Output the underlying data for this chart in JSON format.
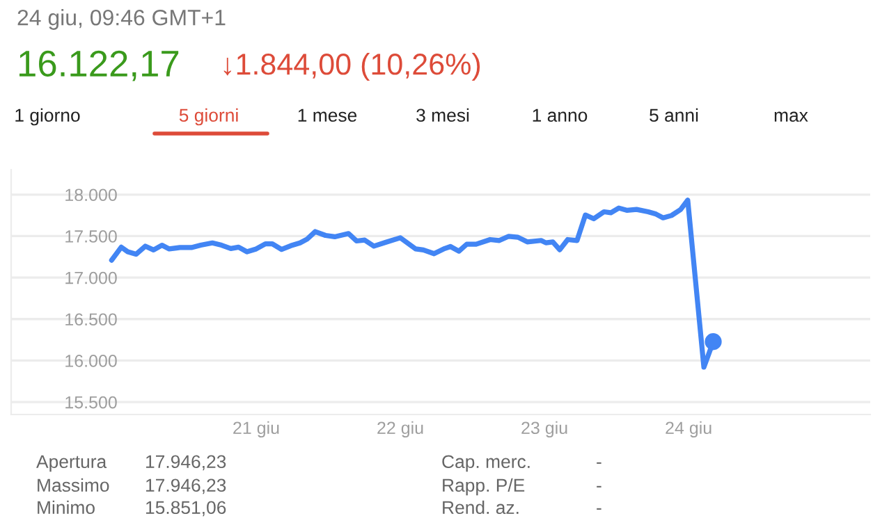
{
  "chart_data": {
    "type": "line",
    "title": "24 giu, 09:46 GMT+1",
    "subtitle": "16.122,17",
    "annotations": [
      "↓1.844,00 (10,26%)",
      "1 giorno",
      "5 giorni",
      "1 mese",
      "3 mesi",
      "1 anno",
      "5 anni",
      "max",
      "Apertura",
      "17.946,23",
      "Massimo",
      "17.946,23",
      "Minimo",
      "15.851,06",
      "Cap. merc.",
      "-",
      "Rapp. P/E",
      "-",
      "Rend. az.",
      "-"
    ],
    "series": [
      {
        "color": "#4285f4",
        "marker": "none",
        "x": [
          19.997,
          20.064,
          20.109,
          20.167,
          20.231,
          20.288,
          20.346,
          20.397,
          20.471,
          20.551,
          20.615,
          20.696,
          20.76,
          20.824,
          20.878,
          20.936,
          21.0,
          21.064,
          21.112,
          21.176,
          21.24,
          21.304,
          21.353,
          21.41,
          21.481,
          21.545,
          21.641,
          21.696,
          21.753,
          21.817,
          21.897,
          22.0,
          22.106,
          22.16,
          22.234,
          22.308,
          22.348,
          22.406,
          22.461,
          22.526,
          22.623,
          22.687,
          22.752,
          22.816,
          22.881,
          22.977,
          23.01,
          23.058,
          23.106,
          23.161,
          23.226,
          23.284,
          23.342,
          23.413,
          23.461,
          23.516,
          23.574,
          23.639,
          23.719,
          23.774,
          23.823,
          23.881,
          23.945,
          23.994,
          24.106,
          24.171
        ],
        "values": [
          17209,
          17367,
          17311,
          17282,
          17378,
          17333,
          17390,
          17345,
          17362,
          17362,
          17390,
          17418,
          17390,
          17350,
          17367,
          17311,
          17345,
          17407,
          17407,
          17339,
          17384,
          17418,
          17463,
          17554,
          17508,
          17492,
          17531,
          17441,
          17452,
          17379,
          17424,
          17480,
          17345,
          17333,
          17288,
          17350,
          17374,
          17318,
          17402,
          17402,
          17458,
          17447,
          17497,
          17486,
          17430,
          17447,
          17419,
          17430,
          17335,
          17458,
          17447,
          17754,
          17709,
          17793,
          17782,
          17838,
          17810,
          17821,
          17793,
          17765,
          17720,
          17748,
          17821,
          17933,
          15920,
          16228
        ]
      },
      {
        "type": "scatter",
        "color": "#4285f4",
        "marker": "circle",
        "x": [
          24.171
        ],
        "values": [
          16228
        ]
      }
    ],
    "xlim": [
      19.3,
      25.26
    ],
    "ylim": [
      15350,
      18300
    ],
    "xticks": [
      {
        "value": 21,
        "label": "21 giu"
      },
      {
        "value": 22,
        "label": "22 giu"
      },
      {
        "value": 23,
        "label": "23 giu"
      },
      {
        "value": 24,
        "label": "24 giu"
      }
    ],
    "yticks": [
      {
        "value": 15500,
        "label": "15.500"
      },
      {
        "value": 16000,
        "label": "16.000"
      },
      {
        "value": 16500,
        "label": "16.500"
      },
      {
        "value": 17000,
        "label": "17.000"
      },
      {
        "value": 17500,
        "label": "17.500"
      },
      {
        "value": 18000,
        "label": "18.000"
      }
    ],
    "grid": "y",
    "legend": false
  }
}
